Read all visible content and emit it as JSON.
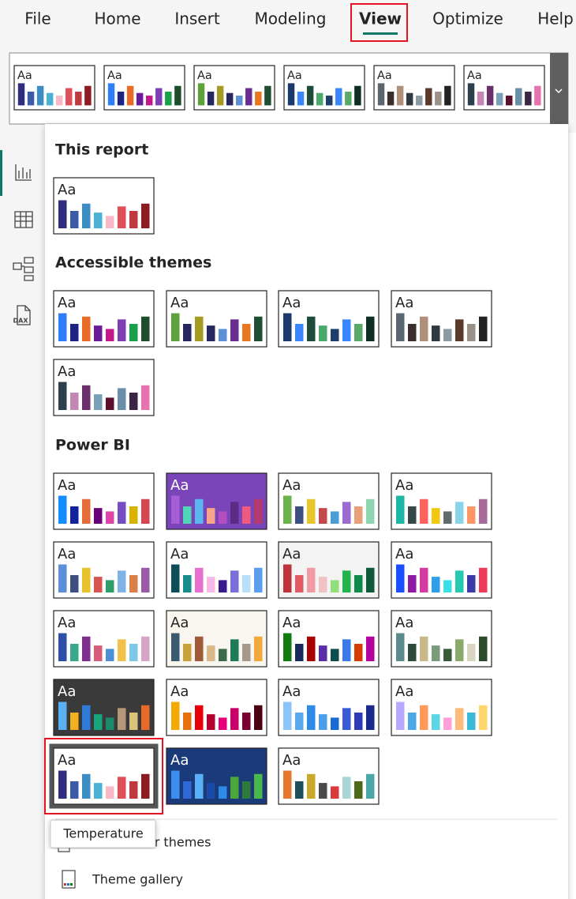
{
  "tabs": [
    "File",
    "Home",
    "Insert",
    "Modeling",
    "View",
    "Optimize",
    "Help"
  ],
  "active_tab": "View",
  "sample_text": "Aa",
  "sidebar_badge": "DAX",
  "ribbon_themes": [
    {
      "colors": [
        "#2e2d7e",
        "#3b5aa9",
        "#3c8dc4",
        "#49b0d6",
        "#f8b8c6",
        "#e04e5a",
        "#c0393f",
        "#8c1c22"
      ]
    },
    {
      "colors": [
        "#2d7ff9",
        "#1c2385",
        "#e86c26",
        "#6a1b9a",
        "#c2188b",
        "#7e3fb5",
        "#1a9e4a",
        "#1e4d2b"
      ]
    },
    {
      "colors": [
        "#5fa13a",
        "#26275f",
        "#a59a22",
        "#26275f",
        "#5b8fd6",
        "#6a2c91",
        "#e87722",
        "#1f4e33"
      ]
    },
    {
      "colors": [
        "#1b3a6b",
        "#3a86ff",
        "#1d4d3a",
        "#4ca96e",
        "#1d3d6b",
        "#3a86ff",
        "#59a96a",
        "#0f2e23"
      ]
    },
    {
      "colors": [
        "#5b6770",
        "#3a2f2b",
        "#b08f7a",
        "#2e3a40",
        "#8a9ba3",
        "#5b3a2c",
        "#9a9288",
        "#222222"
      ]
    },
    {
      "colors": [
        "#2d3e4c",
        "#c486b2",
        "#6b2f6b",
        "#7a9fb8",
        "#5b0f2c",
        "#6b8fa8",
        "#3a2545",
        "#e673b0"
      ]
    }
  ],
  "sections": [
    {
      "title": "This report",
      "themes": [
        {
          "colors": [
            "#2e2d7e",
            "#3b5aa9",
            "#3c8dc4",
            "#49b0d6",
            "#f8b8c6",
            "#e04e5a",
            "#c0393f",
            "#8c1c22"
          ]
        }
      ]
    },
    {
      "title": "Accessible themes",
      "themes": [
        {
          "colors": [
            "#2d7ff9",
            "#1c2385",
            "#e86c26",
            "#6a1b9a",
            "#c2188b",
            "#7e3fb5",
            "#1a9e4a",
            "#1e4d2b"
          ]
        },
        {
          "colors": [
            "#5fa13a",
            "#26275f",
            "#a59a22",
            "#26275f",
            "#5b8fd6",
            "#6a2c91",
            "#e87722",
            "#1f4e33"
          ]
        },
        {
          "colors": [
            "#1b3a6b",
            "#3a86ff",
            "#1d4d3a",
            "#4ca96e",
            "#1d3d6b",
            "#3a86ff",
            "#59a96a",
            "#0f2e23"
          ]
        },
        {
          "colors": [
            "#5b6770",
            "#3a2f2b",
            "#b08f7a",
            "#2e3a40",
            "#8a9ba3",
            "#5b3a2c",
            "#9a9288",
            "#222222"
          ]
        },
        {
          "colors": [
            "#2d3e4c",
            "#c486b2",
            "#6b2f6b",
            "#7a9fb8",
            "#5b0f2c",
            "#6b8fa8",
            "#3a2545",
            "#e673b0"
          ]
        }
      ]
    },
    {
      "title": "Power BI",
      "themes": [
        {
          "colors": [
            "#118dff",
            "#12239e",
            "#e66c37",
            "#6b007b",
            "#e044a7",
            "#744ec2",
            "#d9b300",
            "#d64550"
          ]
        },
        {
          "colors": [
            "#a65ed6",
            "#4fd6b8",
            "#5ab7f0",
            "#f7a58a",
            "#b44cc2",
            "#5b2c86",
            "#f05a7e",
            "#b33a6e"
          ],
          "background": "#7a45b8",
          "text_color": "#ffffff"
        },
        {
          "colors": [
            "#6cb24a",
            "#3e4e82",
            "#e6c62a",
            "#c44a4a",
            "#4b9dd6",
            "#9b6bd1",
            "#e8a07a",
            "#8fd5b0"
          ]
        },
        {
          "colors": [
            "#1eb7a5",
            "#374649",
            "#fd625e",
            "#f2c80f",
            "#5f6b6d",
            "#8ad4eb",
            "#fe9666",
            "#a66999"
          ]
        },
        {
          "colors": [
            "#5b8fd8",
            "#3e4e82",
            "#e8c22a",
            "#d9534f",
            "#2e9e6b",
            "#7fb3e8",
            "#d9804a",
            "#9b5aa8"
          ]
        },
        {
          "colors": [
            "#0e4d57",
            "#168c8c",
            "#e66fcf",
            "#f7b8e8",
            "#3a1c8f",
            "#7a6fd6",
            "#b8dff8",
            "#5b9ef0"
          ]
        },
        {
          "colors": [
            "#c0323a",
            "#e05a63",
            "#f09aa3",
            "#f0c2c6",
            "#8fe07a",
            "#24b24a",
            "#0e8a4a",
            "#0e5a3a"
          ],
          "background": "#f3f3f3"
        },
        {
          "colors": [
            "#1a4fff",
            "#8c1aa3",
            "#d63aa3",
            "#2e9ee8",
            "#3ae0e8",
            "#26c9b0",
            "#3a3aa8",
            "#f03a5a"
          ]
        },
        {
          "colors": [
            "#2e4fa8",
            "#3aa68c",
            "#7e2e8f",
            "#d95b7a",
            "#4b8fd6",
            "#f2c14b",
            "#7fc7e8",
            "#d9a3c9"
          ]
        },
        {
          "colors": [
            "#3b5a6e",
            "#c9a13a",
            "#a05a3a",
            "#d9b88a",
            "#3a6a4a",
            "#1f7a5a",
            "#a89a8a",
            "#f2a83a"
          ],
          "background": "#f8f6ee"
        },
        {
          "colors": [
            "#107c10",
            "#1a2a5a",
            "#a80000",
            "#5a2ea6",
            "#0e4d4d",
            "#3a7ae8",
            "#d83b01",
            "#b4009e"
          ]
        },
        {
          "colors": [
            "#5a8a8a",
            "#2e4a3a",
            "#c9b88a",
            "#7a9a7a",
            "#3a5a3a",
            "#8aaa6a",
            "#d9d6c0",
            "#2a4a2a"
          ]
        },
        {
          "colors": [
            "#5ab0f0",
            "#f2b01e",
            "#2e7ad6",
            "#17a67a",
            "#1a8a6a",
            "#b5977a",
            "#d9c47a",
            "#e86a2a"
          ],
          "background": "#3a3a3a",
          "text_color": "#ffffff"
        },
        {
          "colors": [
            "#f2a900",
            "#e8700a",
            "#e8000a",
            "#b3002e",
            "#e8007a",
            "#c9006a",
            "#7a0032",
            "#4a0010"
          ]
        },
        {
          "colors": [
            "#8ac4f8",
            "#5aa8f0",
            "#2e8ae8",
            "#4a9fe8",
            "#1a6ad6",
            "#3a5ad6",
            "#2e3ab8",
            "#1a2a8a"
          ]
        },
        {
          "colors": [
            "#b5a8ff",
            "#4aa8e8",
            "#ff9a5a",
            "#5ad6e8",
            "#ffa0d8",
            "#ffbb7a",
            "#3ab8d6",
            "#ffd66a"
          ]
        },
        {
          "colors": [
            "#2e2d7e",
            "#3b5aa9",
            "#3c8dc4",
            "#49b0d6",
            "#f8b8c6",
            "#e04e5a",
            "#c0393f",
            "#8c1c22"
          ],
          "selected": true
        },
        {
          "colors": [
            "#3a8ef0",
            "#2e6ad6",
            "#5ab0f8",
            "#1a4aa8",
            "#2e8ae8",
            "#4aa83a",
            "#2e7a3a",
            "#4ab84a"
          ],
          "background": "#1b3a7a",
          "text_color": "#ffffff"
        },
        {
          "colors": [
            "#e8772e",
            "#1f4e5a",
            "#c9a82a",
            "#4a4a4a",
            "#d93a3a",
            "#a8d6d6",
            "#4a6a1a",
            "#4aa8a8"
          ]
        }
      ]
    }
  ],
  "menu_items": [
    "Browse for themes",
    "Theme gallery"
  ],
  "tooltip": "Temperature"
}
